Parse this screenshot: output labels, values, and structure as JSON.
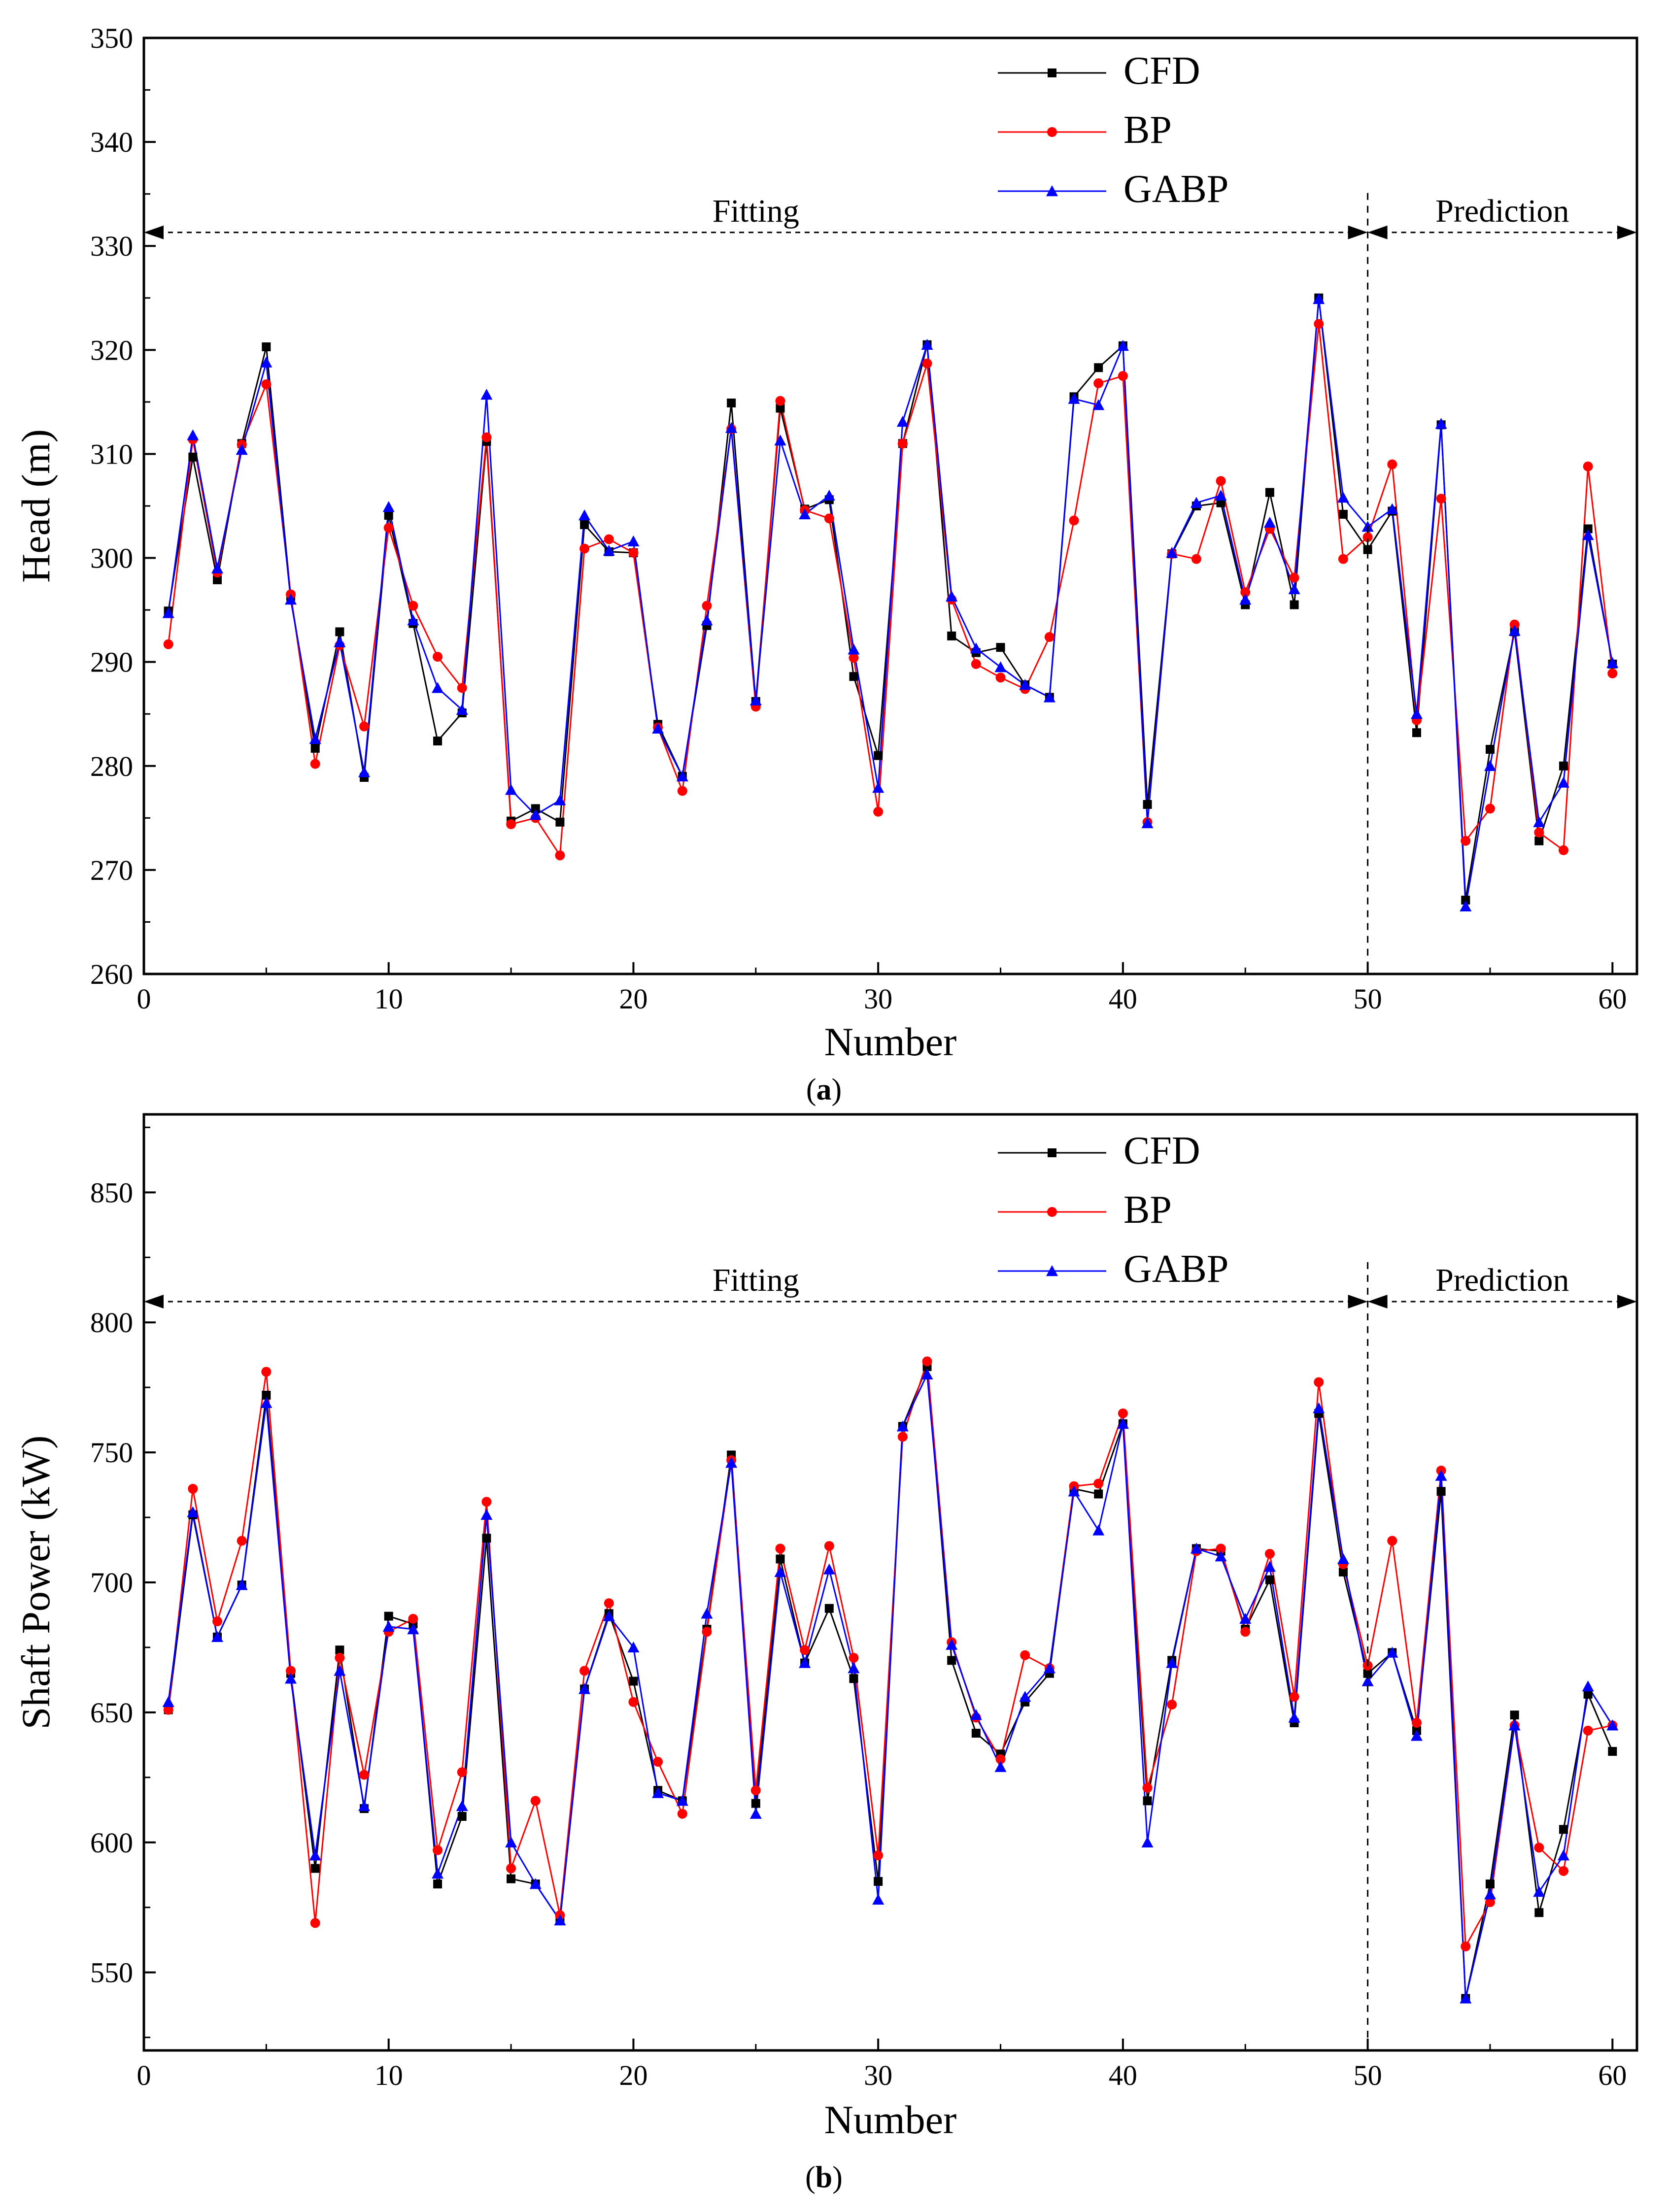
{
  "chart_data": [
    {
      "id": "a",
      "type": "line",
      "caption": {
        "open": "(",
        "letter": "a",
        "close": ")"
      },
      "xlabel": "Number",
      "ylabel": "Head (m)",
      "xlim": [
        0,
        61
      ],
      "ylim": [
        260,
        350
      ],
      "xticks": [
        0,
        10,
        20,
        30,
        40,
        50,
        60
      ],
      "yticks": [
        260,
        270,
        280,
        290,
        300,
        310,
        320,
        330,
        340,
        350
      ],
      "grid": false,
      "legend_position": "top-center",
      "divider_x": 50,
      "regions": [
        {
          "label": "Fitting",
          "from": 0,
          "to": 50
        },
        {
          "label": "Prediction",
          "from": 50,
          "to": 61
        }
      ],
      "region_arrow_y": 331.3,
      "x": [
        1,
        2,
        3,
        4,
        5,
        6,
        7,
        8,
        9,
        10,
        11,
        12,
        13,
        14,
        15,
        16,
        17,
        18,
        19,
        20,
        21,
        22,
        23,
        24,
        25,
        26,
        27,
        28,
        29,
        30,
        31,
        32,
        33,
        34,
        35,
        36,
        37,
        38,
        39,
        40,
        41,
        42,
        43,
        44,
        45,
        46,
        47,
        48,
        49,
        50,
        51,
        52,
        53,
        54,
        55,
        56,
        57,
        58,
        59,
        60
      ],
      "series": [
        {
          "name": "CFD",
          "color": "#000000",
          "marker": "square",
          "values": [
            294.9,
            309.7,
            297.9,
            311.0,
            320.3,
            296.3,
            281.7,
            292.9,
            278.9,
            304.1,
            293.7,
            282.4,
            285.1,
            311.2,
            274.7,
            275.9,
            274.6,
            303.2,
            300.6,
            300.5,
            284.0,
            279.0,
            293.5,
            314.9,
            286.2,
            314.4,
            304.7,
            305.6,
            288.6,
            281.0,
            311.0,
            320.5,
            292.5,
            290.9,
            291.4,
            287.8,
            286.6,
            315.5,
            318.3,
            320.4,
            276.3,
            300.4,
            305.0,
            305.3,
            295.5,
            306.3,
            295.5,
            325.0,
            304.2,
            300.8,
            304.5,
            283.2,
            312.8,
            267.1,
            281.6,
            292.9,
            272.8,
            280.0,
            302.8,
            289.8
          ]
        },
        {
          "name": "BP",
          "color": "#ff0000",
          "marker": "circle",
          "values": [
            291.7,
            311.4,
            298.6,
            310.9,
            316.7,
            296.5,
            280.2,
            291.6,
            283.8,
            302.9,
            295.4,
            290.5,
            287.5,
            311.6,
            274.4,
            275.0,
            271.4,
            300.9,
            301.8,
            300.5,
            283.7,
            277.6,
            295.4,
            312.4,
            285.7,
            315.1,
            304.6,
            303.8,
            290.4,
            275.6,
            311.0,
            318.7,
            296.0,
            289.8,
            288.5,
            287.4,
            292.4,
            303.6,
            316.8,
            317.5,
            274.6,
            300.4,
            299.9,
            307.4,
            296.7,
            302.8,
            298.1,
            322.5,
            299.9,
            302.0,
            309.0,
            284.4,
            305.7,
            272.8,
            275.9,
            293.6,
            273.6,
            271.9,
            308.8,
            288.9
          ]
        },
        {
          "name": "GABP",
          "color": "#0000ff",
          "marker": "triangle",
          "values": [
            294.7,
            311.8,
            299.0,
            310.4,
            318.8,
            296.0,
            282.6,
            291.9,
            279.4,
            304.9,
            294.0,
            287.5,
            285.4,
            315.7,
            277.7,
            275.3,
            276.7,
            304.1,
            300.7,
            301.6,
            283.6,
            279.0,
            294.0,
            312.5,
            286.3,
            311.3,
            304.2,
            306.0,
            291.2,
            277.9,
            313.1,
            320.5,
            296.3,
            291.3,
            289.5,
            287.8,
            286.6,
            315.3,
            314.7,
            320.4,
            274.5,
            300.5,
            305.3,
            306.0,
            296.0,
            303.4,
            297.0,
            324.9,
            305.8,
            303.0,
            304.7,
            285.0,
            312.9,
            266.5,
            280.0,
            293.0,
            274.6,
            278.4,
            302.2,
            289.9
          ]
        }
      ]
    },
    {
      "id": "b",
      "type": "line",
      "caption": {
        "open": "(",
        "letter": "b",
        "close": ")"
      },
      "xlabel": "Number",
      "ylabel": "Shaft Power (kW)",
      "xlim": [
        0,
        61
      ],
      "ylim": [
        520,
        880
      ],
      "xticks": [
        0,
        10,
        20,
        30,
        40,
        50,
        60
      ],
      "yticks": [
        550,
        600,
        650,
        700,
        750,
        800,
        850
      ],
      "grid": false,
      "legend_position": "top-center",
      "divider_x": 50,
      "regions": [
        {
          "label": "Fitting",
          "from": 0,
          "to": 50
        },
        {
          "label": "Prediction",
          "from": 50,
          "to": 61
        }
      ],
      "region_arrow_y": 808,
      "x": [
        1,
        2,
        3,
        4,
        5,
        6,
        7,
        8,
        9,
        10,
        11,
        12,
        13,
        14,
        15,
        16,
        17,
        18,
        19,
        20,
        21,
        22,
        23,
        24,
        25,
        26,
        27,
        28,
        29,
        30,
        31,
        32,
        33,
        34,
        35,
        36,
        37,
        38,
        39,
        40,
        41,
        42,
        43,
        44,
        45,
        46,
        47,
        48,
        49,
        50,
        51,
        52,
        53,
        54,
        55,
        56,
        57,
        58,
        59,
        60
      ],
      "series": [
        {
          "name": "CFD",
          "color": "#000000",
          "marker": "square",
          "values": [
            651,
            726,
            679,
            699,
            772,
            665,
            590,
            674,
            613,
            687,
            684,
            584,
            610,
            717,
            586,
            584,
            570,
            659,
            688,
            662,
            620,
            616,
            682,
            749,
            615,
            709,
            669,
            690,
            663,
            585,
            760,
            783,
            670,
            642,
            634,
            654,
            665,
            736,
            734,
            761,
            616,
            670,
            713,
            712,
            682,
            701,
            646,
            765,
            704,
            665,
            673,
            643,
            735,
            540,
            584,
            649,
            573,
            605,
            657,
            635
          ]
        },
        {
          "name": "BP",
          "color": "#ff0000",
          "marker": "circle",
          "values": [
            651,
            736,
            685,
            716,
            781,
            666,
            569,
            671,
            626,
            681,
            686,
            597,
            627,
            731,
            590,
            616,
            572,
            666,
            692,
            654,
            631,
            611,
            681,
            747,
            620,
            713,
            674,
            714,
            671,
            595,
            756,
            785,
            677,
            648,
            632,
            672,
            667,
            737,
            738,
            765,
            621,
            653,
            712,
            713,
            681,
            711,
            656,
            777,
            707,
            668,
            716,
            646,
            743,
            560,
            577,
            645,
            598,
            589,
            643,
            645
          ]
        },
        {
          "name": "GABP",
          "color": "#0000ff",
          "marker": "triangle",
          "values": [
            654,
            727,
            679,
            699,
            769,
            663,
            595,
            666,
            614,
            683,
            682,
            588,
            614,
            726,
            600,
            584,
            570,
            659,
            687,
            675,
            619,
            616,
            688,
            746,
            611,
            704,
            669,
            705,
            667,
            578,
            760,
            780,
            676,
            649,
            629,
            656,
            667,
            735,
            720,
            761,
            600,
            669,
            713,
            710,
            686,
            706,
            648,
            767,
            709,
            662,
            673,
            641,
            741,
            540,
            580,
            645,
            581,
            595,
            660,
            645
          ]
        }
      ]
    }
  ]
}
